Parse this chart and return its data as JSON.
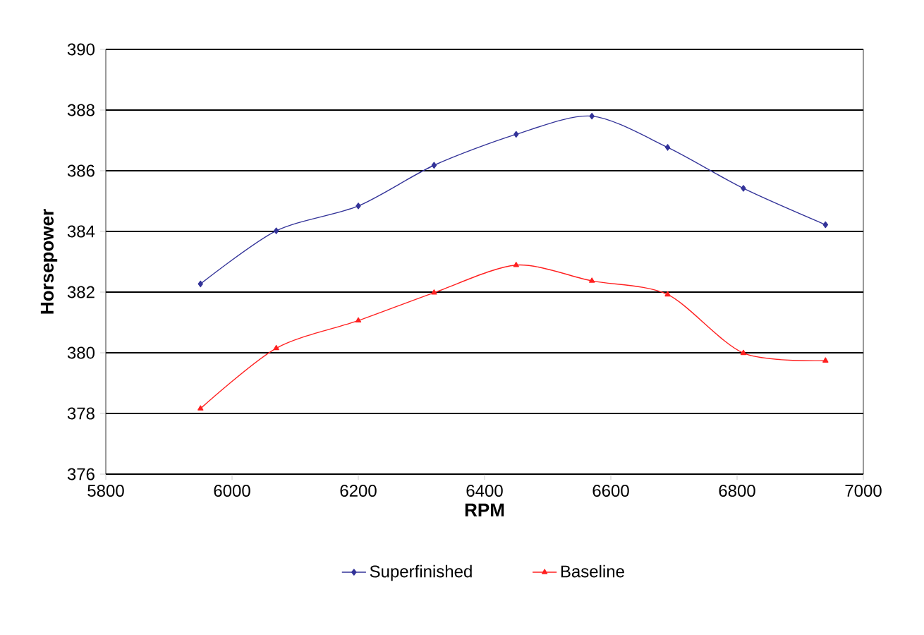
{
  "chart_data": {
    "type": "line",
    "xlabel": "RPM",
    "ylabel": "Horsepower",
    "x": [
      5950,
      6070,
      6200,
      6320,
      6450,
      6570,
      6690,
      6810,
      6940
    ],
    "series": [
      {
        "name": "Superfinished",
        "color": "#333399",
        "marker": "diamond",
        "values": [
          382.27,
          384.02,
          384.84,
          386.18,
          387.2,
          387.8,
          386.77,
          385.42,
          384.22
        ]
      },
      {
        "name": "Baseline",
        "color": "#ff2020",
        "marker": "triangle",
        "values": [
          378.16,
          380.15,
          381.06,
          381.98,
          382.89,
          382.37,
          381.92,
          379.99,
          379.74
        ]
      }
    ],
    "xlim": [
      5800,
      7000
    ],
    "xticks": [
      5800,
      6000,
      6200,
      6400,
      6600,
      6800,
      7000
    ],
    "ylim": [
      376,
      390
    ],
    "yticks": [
      376,
      378,
      380,
      382,
      384,
      386,
      388,
      390
    ],
    "grid": "y",
    "legend": "bottom"
  }
}
